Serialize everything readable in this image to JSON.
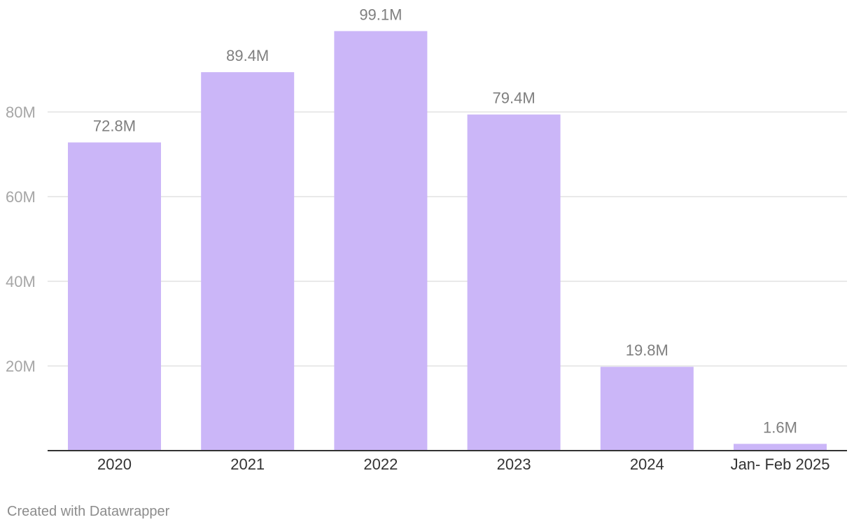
{
  "chart_data": {
    "type": "bar",
    "title": "",
    "xlabel": "",
    "ylabel": "",
    "categories": [
      "2020",
      "2021",
      "2022",
      "2023",
      "2024",
      "Jan- Feb 2025"
    ],
    "values": [
      72.8,
      89.4,
      99.1,
      79.4,
      19.8,
      1.6
    ],
    "value_labels": [
      "72.8M",
      "89.4M",
      "99.1M",
      "79.4M",
      "19.8M",
      "1.6M"
    ],
    "unit": "M",
    "ylim": [
      0,
      100
    ],
    "yticks": [
      20,
      40,
      60,
      80
    ],
    "ytick_labels": [
      "20M",
      "40M",
      "60M",
      "80M"
    ],
    "grid": true,
    "legend": "none"
  },
  "colors": {
    "bar": "#cbb6f8",
    "grid": "#e2e2e2",
    "axis": "#333333",
    "value_label": "#7f7f7f",
    "ytick_label": "#a6a6a6",
    "xtick_label": "#333333",
    "footer": "#8c8c8c"
  },
  "footer": {
    "credit": "Created with Datawrapper"
  }
}
